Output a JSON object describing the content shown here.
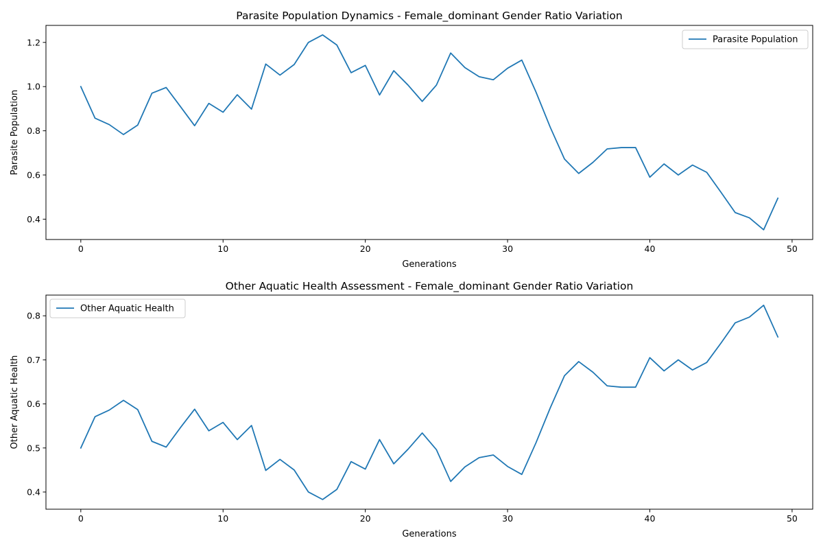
{
  "chart_data": [
    {
      "type": "line",
      "title": "Parasite Population Dynamics - Female_dominant Gender Ratio Variation",
      "xlabel": "Generations",
      "ylabel": "Parasite Population",
      "xlim": [
        -2.45,
        51.45
      ],
      "ylim": [
        0.308,
        1.277
      ],
      "xticks": [
        0,
        10,
        20,
        30,
        40,
        50
      ],
      "yticks": [
        0.4,
        0.6,
        0.8,
        1.0,
        1.2
      ],
      "grid": false,
      "legend_position": "top-right",
      "series": [
        {
          "name": "Parasite Population",
          "color": "#1f77b4",
          "x": [
            0,
            1,
            2,
            3,
            4,
            5,
            6,
            7,
            8,
            9,
            10,
            11,
            12,
            13,
            14,
            15,
            16,
            17,
            18,
            19,
            20,
            21,
            22,
            23,
            24,
            25,
            26,
            27,
            28,
            29,
            30,
            31,
            32,
            33,
            34,
            35,
            36,
            37,
            38,
            39,
            40,
            41,
            42,
            43,
            44,
            45,
            46,
            47,
            48,
            49
          ],
          "values": [
            1.0,
            0.857,
            0.828,
            0.783,
            0.826,
            0.97,
            0.996,
            0.91,
            0.823,
            0.924,
            0.884,
            0.963,
            0.898,
            1.102,
            1.052,
            1.1,
            1.2,
            1.234,
            1.188,
            1.063,
            1.096,
            0.962,
            1.072,
            1.007,
            0.933,
            1.007,
            1.152,
            1.086,
            1.045,
            1.031,
            1.083,
            1.12,
            0.975,
            0.816,
            0.672,
            0.607,
            0.657,
            0.718,
            0.724,
            0.724,
            0.59,
            0.65,
            0.6,
            0.645,
            0.612,
            0.522,
            0.43,
            0.406,
            0.352,
            0.495
          ]
        }
      ]
    },
    {
      "type": "line",
      "title": "Other Aquatic Health Assessment - Female_dominant Gender Ratio Variation",
      "xlabel": "Generations",
      "ylabel": "Other Aquatic Health",
      "xlim": [
        -2.45,
        51.45
      ],
      "ylim": [
        0.361,
        0.847
      ],
      "xticks": [
        0,
        10,
        20,
        30,
        40,
        50
      ],
      "yticks": [
        0.4,
        0.5,
        0.6,
        0.7,
        0.8
      ],
      "grid": false,
      "legend_position": "top-left",
      "series": [
        {
          "name": "Other Aquatic Health",
          "color": "#1f77b4",
          "x": [
            0,
            1,
            2,
            3,
            4,
            5,
            6,
            7,
            8,
            9,
            10,
            11,
            12,
            13,
            14,
            15,
            16,
            17,
            18,
            19,
            20,
            21,
            22,
            23,
            24,
            25,
            26,
            27,
            28,
            29,
            30,
            31,
            32,
            33,
            34,
            35,
            36,
            37,
            38,
            39,
            40,
            41,
            42,
            43,
            44,
            45,
            46,
            47,
            48,
            49
          ],
          "values": [
            0.5,
            0.571,
            0.586,
            0.608,
            0.587,
            0.515,
            0.502,
            0.546,
            0.588,
            0.539,
            0.558,
            0.519,
            0.551,
            0.449,
            0.474,
            0.45,
            0.4,
            0.383,
            0.406,
            0.469,
            0.452,
            0.519,
            0.464,
            0.497,
            0.534,
            0.496,
            0.424,
            0.457,
            0.478,
            0.484,
            0.458,
            0.44,
            0.512,
            0.591,
            0.664,
            0.696,
            0.672,
            0.641,
            0.638,
            0.638,
            0.705,
            0.675,
            0.7,
            0.677,
            0.694,
            0.738,
            0.784,
            0.797,
            0.824,
            0.752
          ]
        }
      ]
    }
  ]
}
